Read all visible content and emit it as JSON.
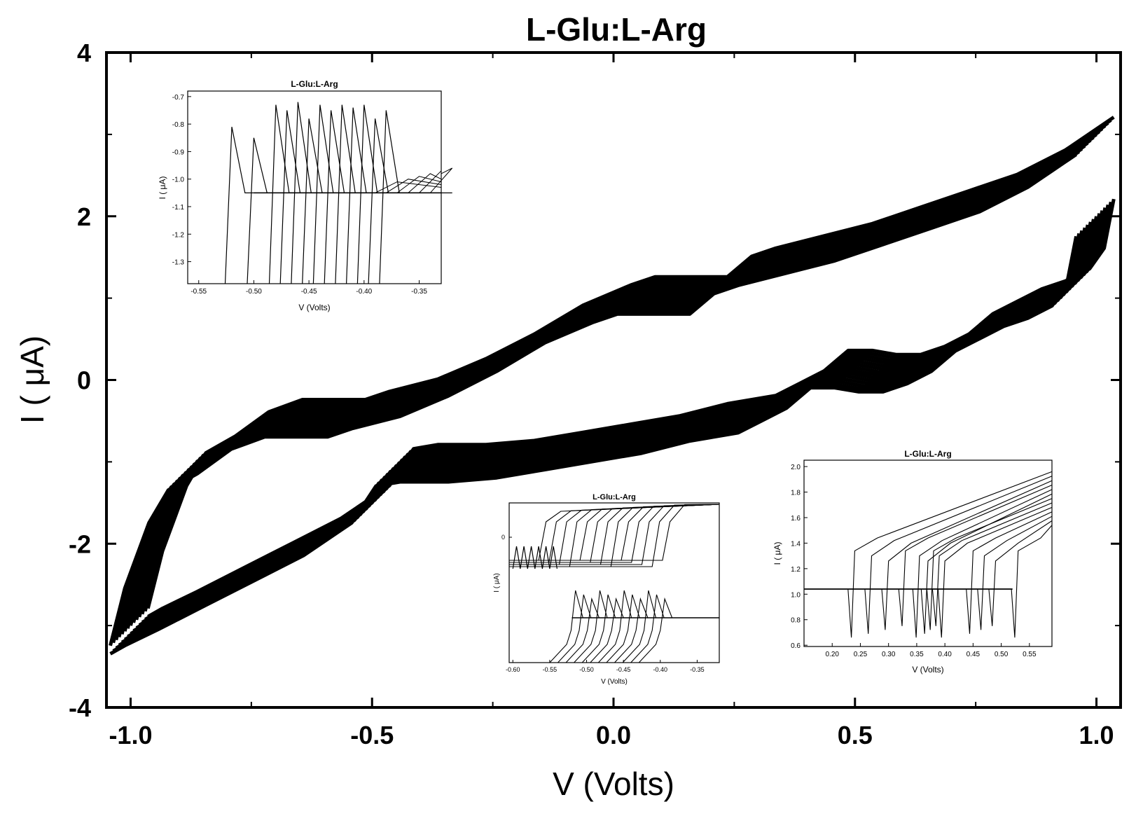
{
  "colors": {
    "trace": "#000000",
    "background": "#ffffff"
  },
  "chart_data": [
    {
      "type": "line",
      "title": "L-Glu:L-Arg",
      "xlabel": "V (Volts)",
      "ylabel": "I ( μA)",
      "xlim": [
        -1.05,
        1.05
      ],
      "ylim": [
        -4,
        4
      ],
      "xticks": [
        -1.0,
        -0.5,
        0.0,
        0.5,
        1.0
      ],
      "xtick_labels": [
        "-1.0",
        "-0.5",
        "0.0",
        "0.5",
        "1.0"
      ],
      "yticks": [
        -4,
        -2,
        0,
        2,
        4
      ],
      "ytick_labels": [
        "-4",
        "-2",
        "0",
        "2",
        "4"
      ],
      "grid": false,
      "series": [
        {
          "x": [
            -1.0,
            -0.97,
            -0.92,
            -0.88,
            -0.82,
            -0.75,
            -0.68,
            -0.6,
            -0.55,
            -0.5,
            -0.4,
            -0.3,
            -0.2,
            -0.1,
            0.0,
            0.05,
            0.1,
            0.15,
            0.2,
            0.25,
            0.3,
            0.4,
            0.5,
            0.6,
            0.7,
            0.8,
            0.9,
            0.95,
            1.0
          ],
          "y": [
            -3.0,
            -2.3,
            -1.5,
            -1.1,
            -0.9,
            -0.6,
            -0.45,
            -0.45,
            -0.45,
            -0.35,
            -0.2,
            0.05,
            0.35,
            0.7,
            0.95,
            1.05,
            1.05,
            1.05,
            1.05,
            1.3,
            1.4,
            1.55,
            1.7,
            1.9,
            2.1,
            2.3,
            2.6,
            2.8,
            3.0
          ]
        },
        {
          "x": [
            1.0,
            0.98,
            0.95,
            0.9,
            0.85,
            0.8,
            0.75,
            0.7,
            0.65,
            0.6,
            0.55,
            0.5,
            0.45,
            0.4,
            0.35,
            0.3,
            0.2,
            0.1,
            0.0,
            -0.1,
            -0.2,
            -0.3,
            -0.4,
            -0.45,
            -0.5,
            -0.55,
            -0.6,
            -0.7,
            -0.8,
            -0.9,
            -0.97,
            -1.0
          ],
          "y": [
            2.0,
            1.4,
            1.15,
            1.0,
            0.9,
            0.75,
            0.6,
            0.35,
            0.2,
            0.1,
            0.1,
            0.15,
            0.15,
            -0.1,
            -0.25,
            -0.4,
            -0.5,
            -0.65,
            -0.75,
            -0.85,
            -0.95,
            -1.0,
            -1.0,
            -1.05,
            -1.5,
            -1.7,
            -1.9,
            -2.2,
            -2.5,
            -2.8,
            -3.0,
            -3.1
          ]
        }
      ]
    },
    {
      "type": "line",
      "title": "L-Glu:L-Arg",
      "xlabel": "V (Volts)",
      "ylabel": "I ( μA)",
      "xlim": [
        -0.56,
        -0.33
      ],
      "ylim": [
        -1.38,
        -0.68
      ],
      "xtick_labels": [
        "-0.55",
        "-0.50",
        "-0.45",
        "-0.40",
        "-0.35"
      ],
      "ytick_labels": [
        "-0.7",
        "-0.8",
        "-0.9",
        "-1.0",
        "-1.1",
        "-1.2",
        "-1.3"
      ],
      "baseline": -1.05,
      "spike_positions": [
        -0.52,
        -0.5,
        -0.48,
        -0.47,
        -0.46,
        -0.45,
        -0.44,
        -0.43,
        -0.42,
        -0.41,
        -0.4,
        -0.39,
        -0.38
      ],
      "spike_peaks": [
        -0.81,
        -0.85,
        -0.73,
        -0.75,
        -0.72,
        -0.78,
        -0.73,
        -0.75,
        -0.73,
        -0.74,
        -0.73,
        -0.78,
        -0.75
      ]
    },
    {
      "type": "line",
      "title": "L-Glu:L-Arg",
      "xlabel": "V (Volts)",
      "ylabel": "I ( μA)",
      "xlim": [
        -0.605,
        -0.32
      ],
      "ylim": [
        0,
        1
      ],
      "xtick_labels": [
        "-0.60",
        "-0.55",
        "-0.50",
        "-0.45",
        "-0.40",
        "-0.35"
      ],
      "ytick_labels": [
        "0"
      ]
    },
    {
      "type": "line",
      "title": "L-Glu:L-Arg",
      "xlabel": "V (Volts)",
      "ylabel": "I ( μA)",
      "xlim": [
        0.15,
        0.59
      ],
      "ylim": [
        0.59,
        2.05
      ],
      "xtick_labels": [
        "0.20",
        "0.25",
        "0.30",
        "0.35",
        "0.40",
        "0.45",
        "0.50",
        "0.55"
      ],
      "ytick_labels": [
        "0.6",
        "0.8",
        "1.0",
        "1.2",
        "1.4",
        "1.6",
        "1.8",
        "2.0"
      ],
      "baseline": 1.04,
      "switch_voltages": [
        0.24,
        0.27,
        0.3,
        0.33,
        0.355,
        0.37,
        0.38,
        0.39,
        0.4,
        0.45,
        0.47,
        0.49,
        0.53
      ]
    }
  ]
}
